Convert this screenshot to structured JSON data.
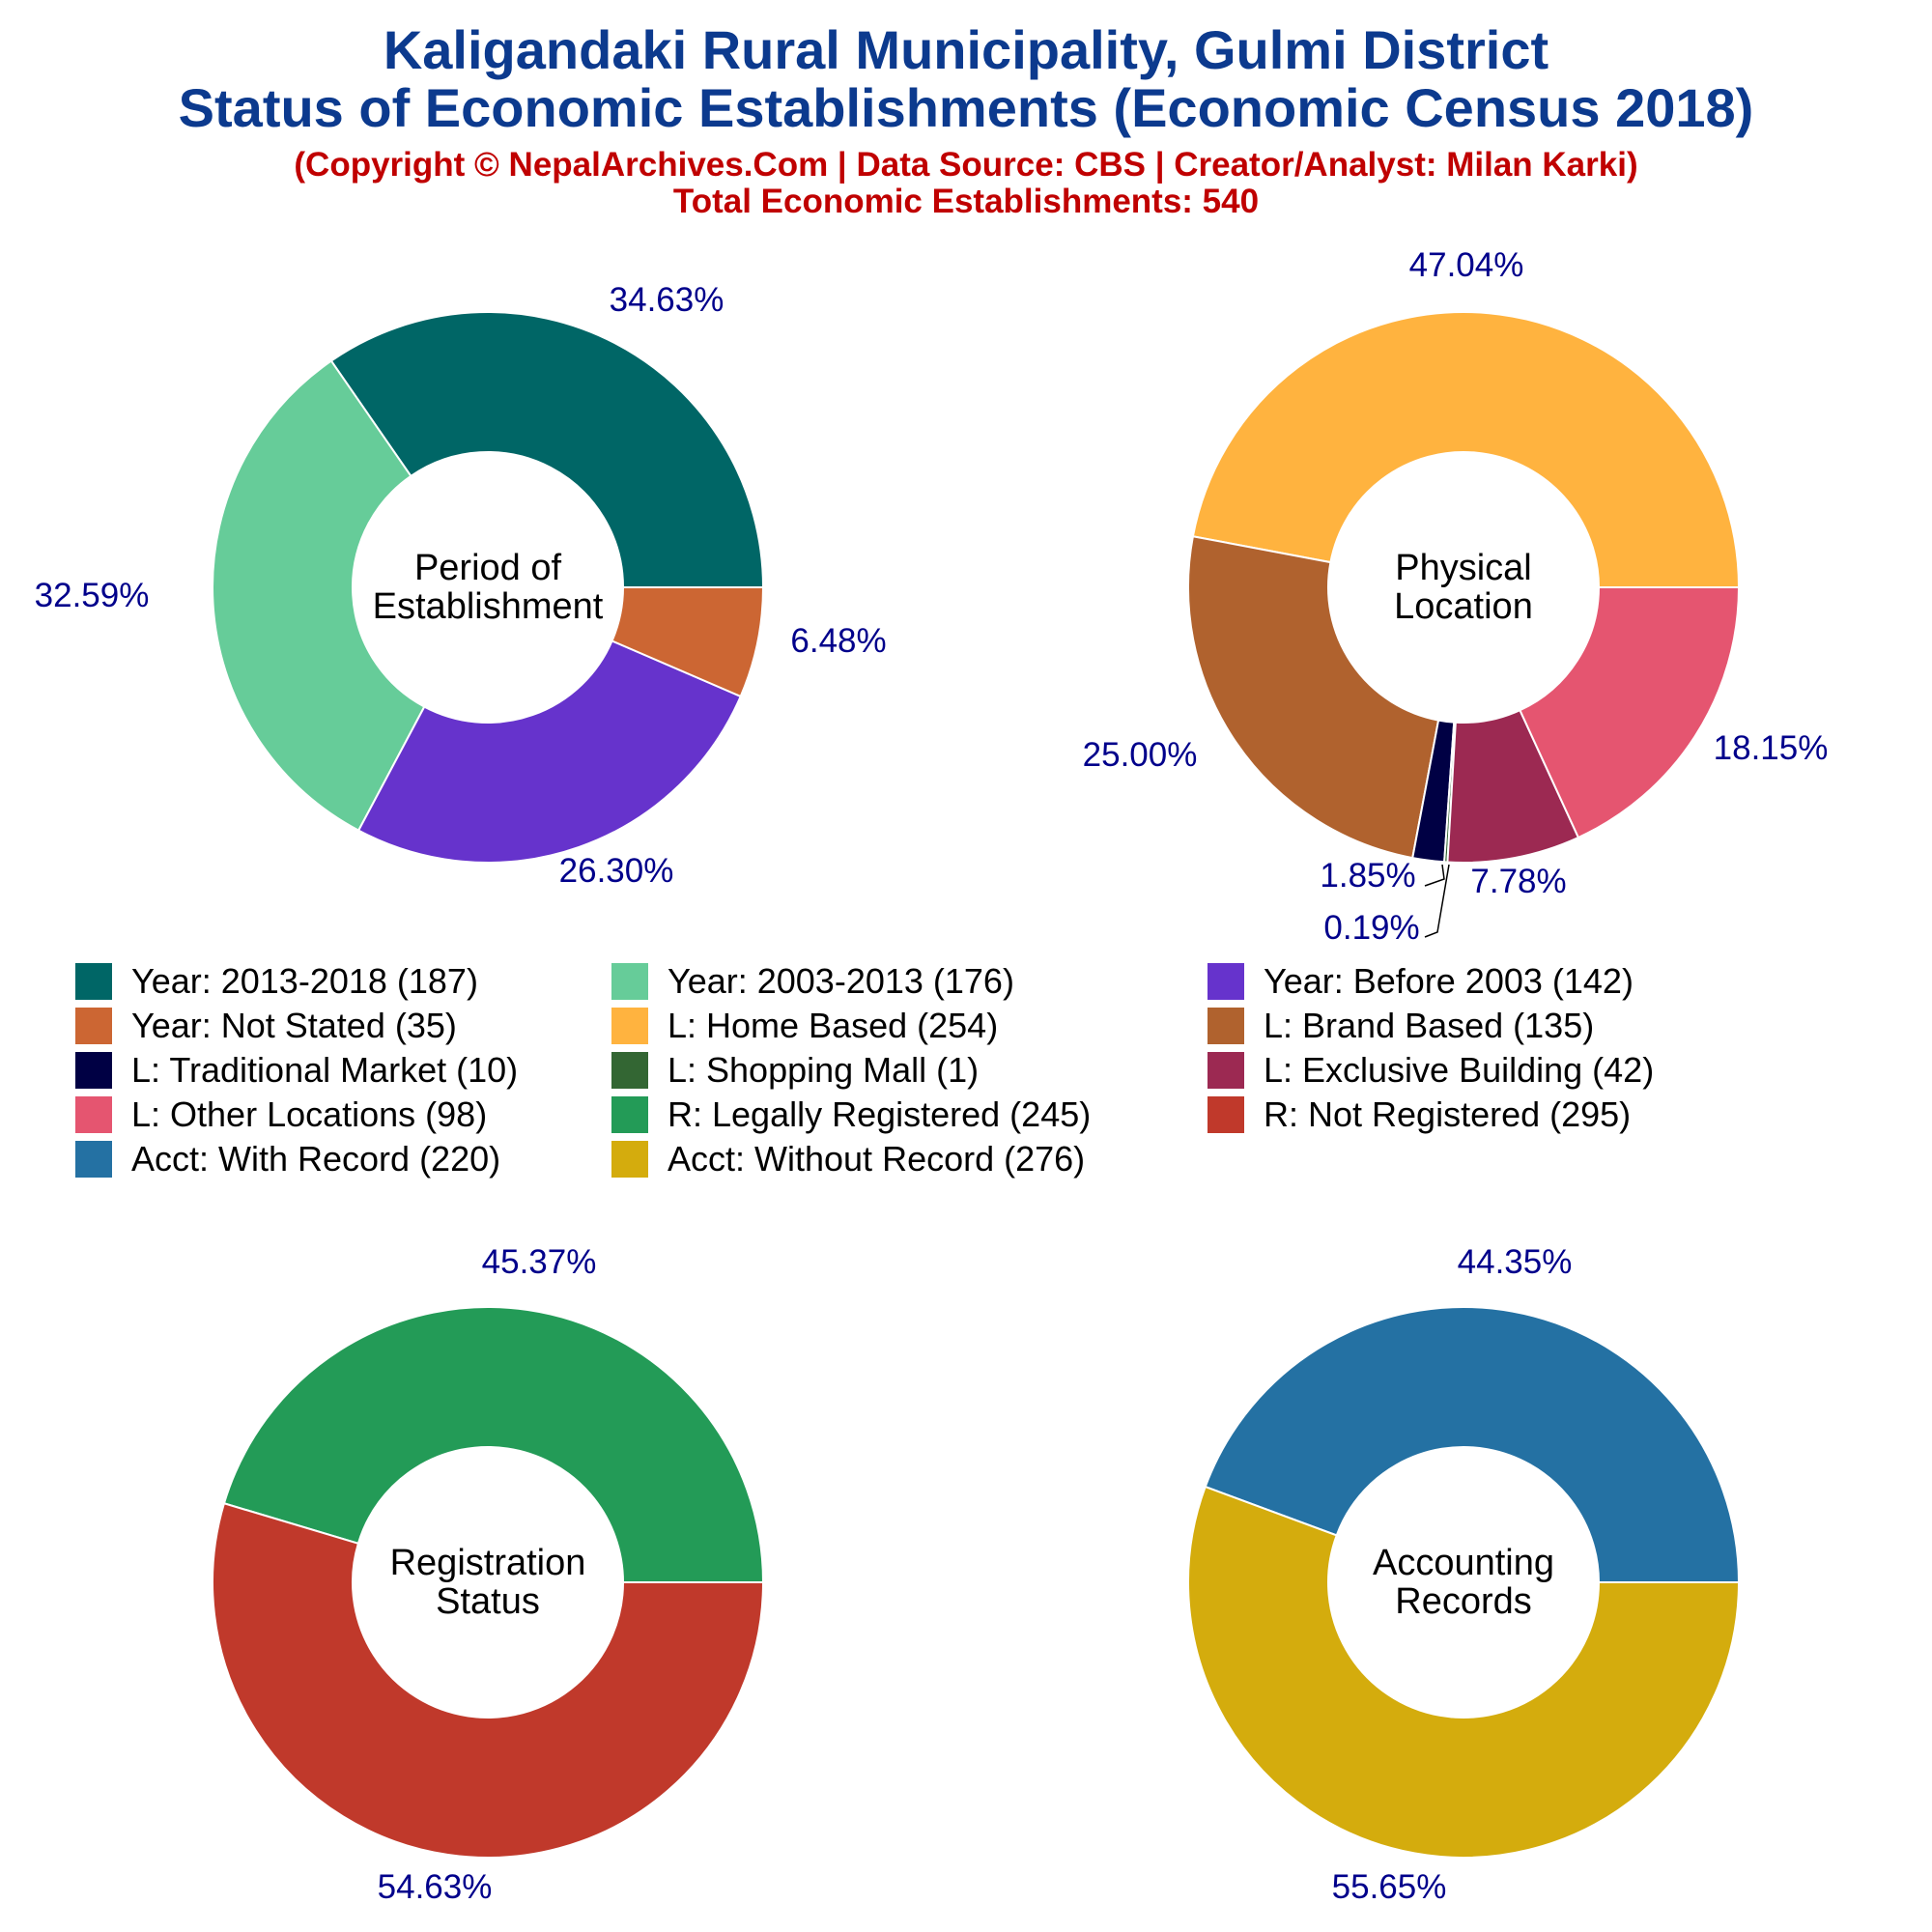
{
  "header": {
    "title_line1": "Kaligandaki Rural Municipality, Gulmi District",
    "title_line2": "Status of Economic Establishments (Economic Census 2018)",
    "credit": "(Copyright © NepalArchives.Com | Data Source: CBS | Creator/Analyst: Milan Karki)",
    "total": "Total Economic Establishments: 540"
  },
  "legend": [
    {
      "label": "Year: 2013-2018 (187)",
      "color": "#006666"
    },
    {
      "label": "Year: 2003-2013 (176)",
      "color": "#66cc99"
    },
    {
      "label": "Year: Before 2003 (142)",
      "color": "#6633cc"
    },
    {
      "label": "Year: Not Stated (35)",
      "color": "#cc6633"
    },
    {
      "label": "L: Home Based (254)",
      "color": "#ffb33f"
    },
    {
      "label": "L: Brand Based (135)",
      "color": "#b0622e"
    },
    {
      "label": "L: Traditional Market (10)",
      "color": "#000044"
    },
    {
      "label": "L: Shopping Mall (1)",
      "color": "#336633"
    },
    {
      "label": "L: Exclusive Building (42)",
      "color": "#9c2952"
    },
    {
      "label": "L: Other Locations (98)",
      "color": "#e55570"
    },
    {
      "label": "R: Legally Registered (245)",
      "color": "#239b57"
    },
    {
      "label": "R: Not Registered (295)",
      "color": "#c0392b"
    },
    {
      "label": "Acct: With Record (220)",
      "color": "#2471a3"
    },
    {
      "label": "Acct: Without Record (276)",
      "color": "#d4ac0d"
    }
  ],
  "chart_data": [
    {
      "type": "pie",
      "center_label": [
        "Period of",
        "Establishment"
      ],
      "start_angle_deg": 0,
      "slices": [
        {
          "name": "Year: 2013-2018",
          "value": 187,
          "percent_label": "34.63%",
          "color": "#006666"
        },
        {
          "name": "Year: 2003-2013",
          "value": 176,
          "percent_label": "32.59%",
          "color": "#66cc99"
        },
        {
          "name": "Year: Before 2003",
          "value": 142,
          "percent_label": "26.30%",
          "color": "#6633cc"
        },
        {
          "name": "Year: Not Stated",
          "value": 35,
          "percent_label": "6.48%",
          "color": "#cc6633"
        }
      ]
    },
    {
      "type": "pie",
      "center_label": [
        "Physical",
        "Location"
      ],
      "start_angle_deg": 0,
      "slices": [
        {
          "name": "L: Home Based",
          "value": 254,
          "percent_label": "47.04%",
          "color": "#ffb33f"
        },
        {
          "name": "L: Brand Based",
          "value": 135,
          "percent_label": "25.00%",
          "color": "#b0622e"
        },
        {
          "name": "L: Traditional Market",
          "value": 10,
          "percent_label": "1.85%",
          "color": "#000044"
        },
        {
          "name": "L: Shopping Mall",
          "value": 1,
          "percent_label": "0.19%",
          "color": "#336633"
        },
        {
          "name": "L: Exclusive Building",
          "value": 42,
          "percent_label": "7.78%",
          "color": "#9c2952"
        },
        {
          "name": "L: Other Locations",
          "value": 98,
          "percent_label": "18.15%",
          "color": "#e55570"
        }
      ]
    },
    {
      "type": "pie",
      "center_label": [
        "Registration",
        "Status"
      ],
      "start_angle_deg": 0,
      "slices": [
        {
          "name": "R: Legally Registered",
          "value": 245,
          "percent_label": "45.37%",
          "color": "#239b57"
        },
        {
          "name": "R: Not Registered",
          "value": 295,
          "percent_label": "54.63%",
          "color": "#c0392b"
        }
      ]
    },
    {
      "type": "pie",
      "center_label": [
        "Accounting",
        "Records"
      ],
      "start_angle_deg": 0,
      "slices": [
        {
          "name": "Acct: With Record",
          "value": 220,
          "percent_label": "44.35%",
          "color": "#2471a3"
        },
        {
          "name": "Acct: Without Record",
          "value": 276,
          "percent_label": "55.65%",
          "color": "#d4ac0d"
        }
      ]
    }
  ],
  "colors": {
    "title": "#0c3a8e",
    "subtitle": "#c00000",
    "percent_label": "#00008b"
  }
}
